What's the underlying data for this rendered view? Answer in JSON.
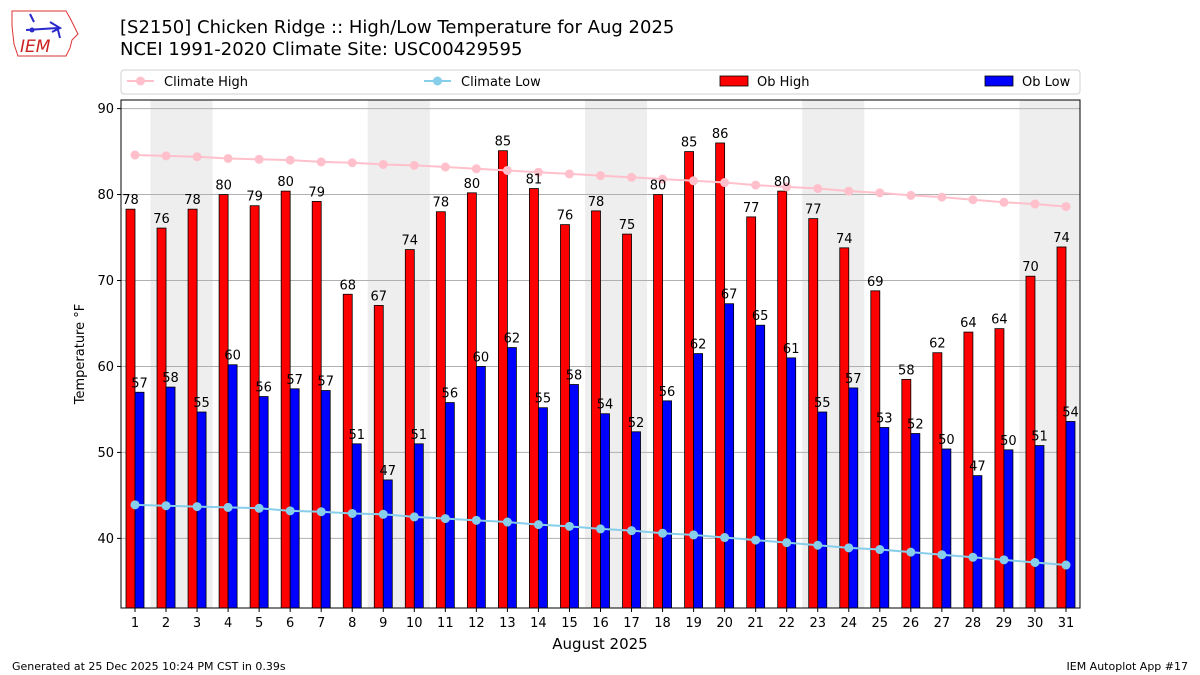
{
  "header": {
    "logo_text": "IEM",
    "title_line1": "[S2150] Chicken Ridge :: High/Low Temperature for Aug 2025",
    "title_line2": "NCEI 1991-2020 Climate Site: USC00429595"
  },
  "footer": {
    "left": "Generated at 25 Dec 2025 10:24 PM CST in 0.39s",
    "right": "IEM Autoplot App #17"
  },
  "chart_data": {
    "type": "bar",
    "title": "[S2150] Chicken Ridge :: High/Low Temperature for Aug 2025",
    "subtitle": "NCEI 1991-2020 Climate Site: USC00429595",
    "xlabel": "August 2025",
    "ylabel": "Temperature °F",
    "ylim": [
      31.9,
      91
    ],
    "yticks": [
      40,
      50,
      60,
      70,
      80,
      90
    ],
    "grid": "y",
    "legend_placement": "top",
    "legend": [
      "Climate High",
      "Climate Low",
      "Ob High",
      "Ob Low"
    ],
    "colors": {
      "climate_high": "#FFC0CB",
      "climate_low": "#87CEEB",
      "ob_high": "#FF0000",
      "ob_low": "#0000FF",
      "weekend_shade": "#EEEEEE"
    },
    "categories": [
      "1",
      "2",
      "3",
      "4",
      "5",
      "6",
      "7",
      "8",
      "9",
      "10",
      "11",
      "12",
      "13",
      "14",
      "15",
      "16",
      "17",
      "18",
      "19",
      "20",
      "21",
      "22",
      "23",
      "24",
      "25",
      "26",
      "27",
      "28",
      "29",
      "30",
      "31"
    ],
    "weekend_days": [
      2,
      3,
      9,
      10,
      16,
      17,
      23,
      24,
      30,
      31
    ],
    "series": [
      {
        "name": "Ob High",
        "kind": "bar",
        "values": [
          78.3,
          76.1,
          78.3,
          80.0,
          78.7,
          80.4,
          79.2,
          68.4,
          67.1,
          73.6,
          78.0,
          80.2,
          85.1,
          80.7,
          76.5,
          78.1,
          75.4,
          80.0,
          85.0,
          86.0,
          77.4,
          80.4,
          77.2,
          73.8,
          68.8,
          58.5,
          61.6,
          64.0,
          64.4,
          70.5,
          73.9
        ],
        "labels": [
          78,
          76,
          78,
          80,
          79,
          80,
          79,
          68,
          67,
          74,
          78,
          80,
          85,
          81,
          76,
          78,
          75,
          80,
          85,
          86,
          77,
          80,
          77,
          74,
          69,
          58,
          62,
          64,
          64,
          70,
          74
        ]
      },
      {
        "name": "Ob Low",
        "kind": "bar",
        "values": [
          57.0,
          57.6,
          54.7,
          60.2,
          56.5,
          57.4,
          57.2,
          51.0,
          46.8,
          51.0,
          55.8,
          60.0,
          62.2,
          55.2,
          57.9,
          54.5,
          52.4,
          56.0,
          61.5,
          67.3,
          64.8,
          61.0,
          54.7,
          57.5,
          52.9,
          52.2,
          50.4,
          47.3,
          50.3,
          50.8,
          53.6
        ],
        "labels": [
          57,
          58,
          55,
          60,
          56,
          57,
          57,
          51,
          47,
          51,
          56,
          60,
          62,
          55,
          58,
          54,
          52,
          56,
          62,
          67,
          65,
          61,
          55,
          57,
          53,
          52,
          50,
          47,
          50,
          51,
          54
        ]
      },
      {
        "name": "Climate High",
        "kind": "line",
        "values": [
          84.6,
          84.5,
          84.4,
          84.2,
          84.1,
          84.0,
          83.8,
          83.7,
          83.5,
          83.4,
          83.2,
          83.0,
          82.8,
          82.6,
          82.4,
          82.2,
          82.0,
          81.8,
          81.6,
          81.4,
          81.1,
          80.9,
          80.7,
          80.4,
          80.2,
          79.9,
          79.7,
          79.4,
          79.1,
          78.9,
          78.6
        ]
      },
      {
        "name": "Climate Low",
        "kind": "line",
        "values": [
          43.9,
          43.8,
          43.7,
          43.6,
          43.5,
          43.2,
          43.1,
          42.9,
          42.8,
          42.5,
          42.3,
          42.1,
          41.9,
          41.6,
          41.4,
          41.1,
          40.9,
          40.6,
          40.4,
          40.1,
          39.8,
          39.5,
          39.2,
          38.9,
          38.7,
          38.4,
          38.1,
          37.8,
          37.5,
          37.2,
          36.9
        ]
      }
    ]
  }
}
